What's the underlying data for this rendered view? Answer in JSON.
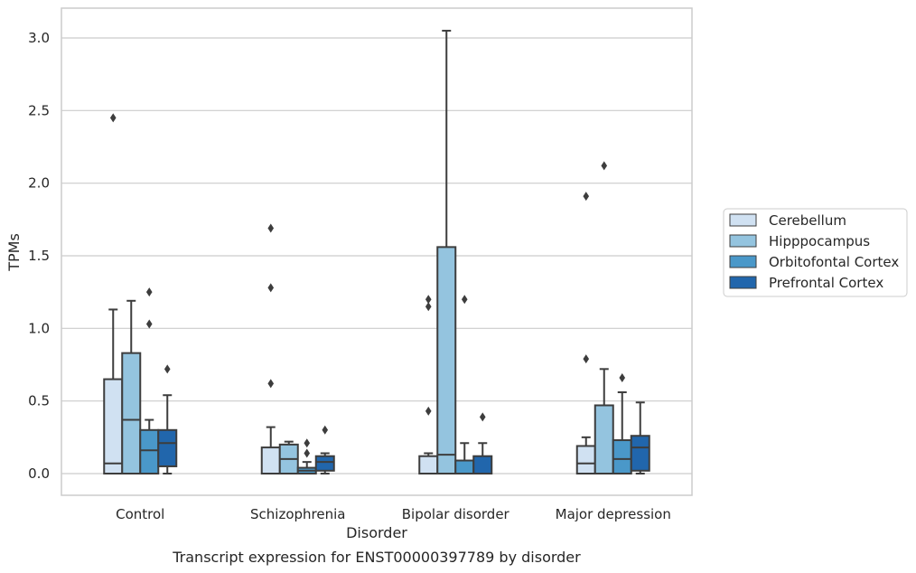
{
  "chart_data": {
    "type": "box",
    "xlabel": "Disorder",
    "ylabel": "TPMs",
    "caption": "Transcript expression for ENST00000397789 by disorder",
    "ylim": [
      -0.15,
      3.2
    ],
    "yticks": [
      "0.0",
      "0.5",
      "1.0",
      "1.5",
      "2.0",
      "2.5",
      "3.0"
    ],
    "grid": true,
    "legend_position": "right",
    "categories": [
      "Control",
      "Schizophrenia",
      "Bipolar disorder",
      "Major depression"
    ],
    "series": [
      {
        "name": "Cerebellum",
        "color": "#d0e1f2",
        "boxes": [
          {
            "whislo": 0.0,
            "q1": 0.0,
            "med": 0.07,
            "q3": 0.65,
            "whishi": 1.13,
            "fliers": [
              2.45
            ]
          },
          {
            "whislo": 0.0,
            "q1": 0.0,
            "med": 0.0,
            "q3": 0.18,
            "whishi": 0.32,
            "fliers": [
              0.62,
              1.28,
              1.69
            ]
          },
          {
            "whislo": 0.0,
            "q1": 0.0,
            "med": 0.0,
            "q3": 0.12,
            "whishi": 0.14,
            "fliers": [
              0.43,
              1.15,
              1.2
            ]
          },
          {
            "whislo": 0.0,
            "q1": 0.0,
            "med": 0.07,
            "q3": 0.19,
            "whishi": 0.25,
            "fliers": [
              0.79,
              1.91
            ]
          }
        ]
      },
      {
        "name": "Hipppocampus",
        "color": "#94c4df",
        "boxes": [
          {
            "whislo": 0.0,
            "q1": 0.0,
            "med": 0.37,
            "q3": 0.83,
            "whishi": 1.19,
            "fliers": []
          },
          {
            "whislo": 0.0,
            "q1": 0.0,
            "med": 0.1,
            "q3": 0.2,
            "whishi": 0.22,
            "fliers": []
          },
          {
            "whislo": 0.0,
            "q1": 0.0,
            "med": 0.13,
            "q3": 1.56,
            "whishi": 3.05,
            "fliers": []
          },
          {
            "whislo": 0.0,
            "q1": 0.0,
            "med": 0.0,
            "q3": 0.47,
            "whishi": 0.72,
            "fliers": [
              2.12
            ]
          }
        ]
      },
      {
        "name": "Orbitofontal Cortex",
        "color": "#4a98c9",
        "boxes": [
          {
            "whislo": 0.0,
            "q1": 0.0,
            "med": 0.16,
            "q3": 0.3,
            "whishi": 0.37,
            "fliers": [
              1.03,
              1.25
            ]
          },
          {
            "whislo": 0.0,
            "q1": 0.0,
            "med": 0.02,
            "q3": 0.04,
            "whishi": 0.08,
            "fliers": [
              0.14,
              0.21
            ]
          },
          {
            "whislo": 0.0,
            "q1": 0.0,
            "med": 0.0,
            "q3": 0.09,
            "whishi": 0.21,
            "fliers": [
              1.2
            ]
          },
          {
            "whislo": 0.0,
            "q1": 0.0,
            "med": 0.1,
            "q3": 0.23,
            "whishi": 0.56,
            "fliers": [
              0.66
            ]
          }
        ]
      },
      {
        "name": "Prefrontal Cortex",
        "color": "#2166ac",
        "boxes": [
          {
            "whislo": 0.0,
            "q1": 0.05,
            "med": 0.21,
            "q3": 0.3,
            "whishi": 0.54,
            "fliers": [
              0.72
            ]
          },
          {
            "whislo": 0.0,
            "q1": 0.02,
            "med": 0.08,
            "q3": 0.12,
            "whishi": 0.14,
            "fliers": [
              0.3
            ]
          },
          {
            "whislo": 0.0,
            "q1": 0.0,
            "med": 0.0,
            "q3": 0.12,
            "whishi": 0.21,
            "fliers": [
              0.39
            ]
          },
          {
            "whislo": 0.0,
            "q1": 0.02,
            "med": 0.18,
            "q3": 0.26,
            "whishi": 0.49,
            "fliers": []
          }
        ]
      }
    ]
  }
}
